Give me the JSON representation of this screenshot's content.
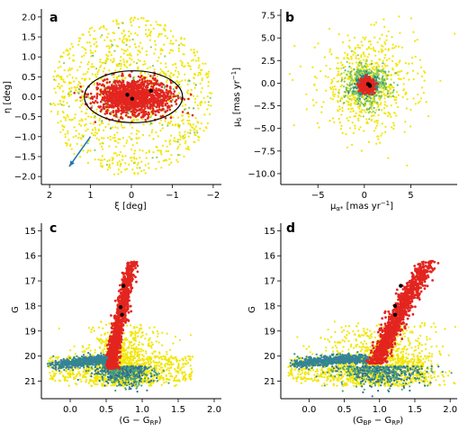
{
  "chart_data": [
    {
      "panel": "a",
      "type": "scatter",
      "xlabel": "ξ [deg]",
      "ylabel": "η [deg]",
      "xlim": [
        2.2,
        -2.2
      ],
      "ylim": [
        -2.2,
        2.2
      ],
      "x_ticks": [
        2,
        1,
        0,
        -1,
        -2
      ],
      "y_ticks": [
        2.0,
        1.5,
        1.0,
        0.5,
        0.0,
        -0.5,
        -1.0,
        -1.5,
        -2.0
      ],
      "x_tick_labels": [
        "2",
        "1",
        "0",
        "−1",
        "−2"
      ],
      "y_tick_labels": [
        "2.0",
        "1.5",
        "1.0",
        "0.5",
        "0.0",
        "−0.5",
        "−1.0",
        "−1.5",
        "−2.0"
      ],
      "field_radius_deg": 2.0,
      "ellipse": {
        "center": [
          -0.05,
          0.0
        ],
        "semi_major_deg": 1.2,
        "semi_minor_deg": 0.65
      },
      "members_core": {
        "center": [
          -0.05,
          0.0
        ],
        "sigma_x_deg": 0.45,
        "sigma_y_deg": 0.22
      },
      "black_points": [
        [
          0.1,
          0.05
        ],
        [
          -0.02,
          -0.05
        ],
        [
          -0.48,
          0.15
        ]
      ],
      "arrow": {
        "from": [
          1.0,
          -1.0
        ],
        "to": [
          1.52,
          -1.75
        ],
        "color": "#1f77b4"
      },
      "colors": {
        "field": "#f2e600",
        "members": "#e3251f",
        "dense": "#2d8a8a",
        "highlight": "#000000"
      }
    },
    {
      "panel": "b",
      "type": "scatter",
      "xlabel": "μα* [mas yr⁻¹]",
      "ylabel": "μδ [mas yr⁻¹]",
      "xlim": [
        -9,
        10
      ],
      "ylim": [
        -11.2,
        8.2
      ],
      "x_ticks": [
        -5,
        0,
        5
      ],
      "y_ticks": [
        7.5,
        5.0,
        2.5,
        0.0,
        -2.5,
        -5.0,
        -7.5,
        -10.0
      ],
      "x_tick_labels": [
        "−5",
        "0",
        "5"
      ],
      "y_tick_labels": [
        "7.5",
        "5.0",
        "2.5",
        "0.0",
        "−2.5",
        "−5.0",
        "−7.5",
        "−10.0"
      ],
      "members_center": [
        0.3,
        -0.2
      ],
      "black_points": [
        [
          0.4,
          -0.1
        ],
        [
          0.6,
          -0.3
        ],
        [
          0.55,
          -0.2
        ]
      ],
      "colors": {
        "field": "#f2e600",
        "members": "#e3251f",
        "dense": "#2d8a8a",
        "highlight": "#000000"
      }
    },
    {
      "panel": "c",
      "type": "scatter",
      "xlabel": "(G − G",
      "xlabel_sub": "RP",
      "xlabel_end": ")",
      "ylabel": "G",
      "xlim": [
        -0.4,
        2.1
      ],
      "ylim": [
        21.7,
        14.7
      ],
      "x_ticks": [
        0.0,
        0.5,
        1.0,
        1.5,
        2.0
      ],
      "y_ticks": [
        15,
        16,
        17,
        18,
        19,
        20,
        21
      ],
      "x_tick_labels": [
        "0.0",
        "0.5",
        "1.0",
        "1.5",
        "2.0"
      ],
      "y_tick_labels": [
        "15",
        "16",
        "17",
        "18",
        "19",
        "20",
        "21"
      ],
      "rgb_ridge": [
        [
          0.86,
          16.2
        ],
        [
          0.8,
          17.0
        ],
        [
          0.74,
          17.8
        ],
        [
          0.68,
          18.6
        ],
        [
          0.63,
          19.4
        ],
        [
          0.6,
          20.0
        ],
        [
          0.58,
          20.5
        ]
      ],
      "horizontal_branch": [
        [
          -0.2,
          20.35
        ],
        [
          0.1,
          20.25
        ],
        [
          0.4,
          20.15
        ],
        [
          0.55,
          20.2
        ]
      ],
      "black_points": [
        [
          0.74,
          17.2
        ],
        [
          0.7,
          18.05
        ],
        [
          0.72,
          18.35
        ]
      ],
      "colors": {
        "field": "#f2e600",
        "members": "#e3251f",
        "dense": "#2d8a8a",
        "highlight": "#000000"
      }
    },
    {
      "panel": "d",
      "type": "scatter",
      "xlabel": "(G",
      "xlabel_sub": "BP",
      "xlabel_mid": " − G",
      "xlabel_sub2": "RP",
      "xlabel_end": ")",
      "ylabel": "G",
      "xlim": [
        -0.4,
        2.1
      ],
      "ylim": [
        21.7,
        14.7
      ],
      "x_ticks": [
        0.0,
        0.5,
        1.0,
        1.5,
        2.0
      ],
      "y_ticks": [
        15,
        16,
        17,
        18,
        19,
        20,
        21
      ],
      "x_tick_labels": [
        "0.0",
        "0.5",
        "1.0",
        "1.5",
        "2.0"
      ],
      "y_tick_labels": [
        "15",
        "16",
        "17",
        "18",
        "19",
        "20",
        "21"
      ],
      "rgb_ridge": [
        [
          1.7,
          16.2
        ],
        [
          1.55,
          16.9
        ],
        [
          1.4,
          17.6
        ],
        [
          1.27,
          18.3
        ],
        [
          1.15,
          19.0
        ],
        [
          1.05,
          19.7
        ],
        [
          0.95,
          20.3
        ]
      ],
      "horizontal_branch": [
        [
          -0.2,
          20.3
        ],
        [
          0.2,
          20.2
        ],
        [
          0.5,
          20.1
        ],
        [
          0.8,
          20.15
        ]
      ],
      "black_points": [
        [
          1.3,
          17.2
        ],
        [
          1.22,
          18.0
        ],
        [
          1.22,
          18.35
        ]
      ],
      "colors": {
        "field": "#f2e600",
        "members": "#e3251f",
        "dense": "#2d8a8a",
        "highlight": "#000000"
      }
    }
  ]
}
